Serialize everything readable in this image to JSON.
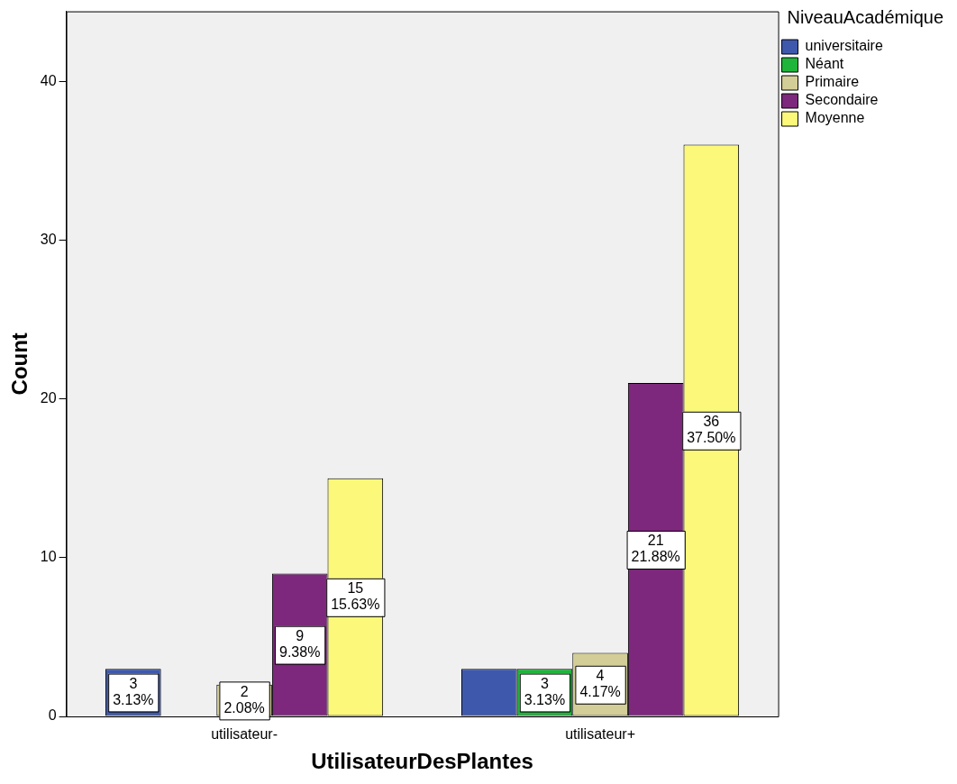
{
  "chart_data": {
    "type": "bar",
    "xlabel": "UtilisateurDesPlantes",
    "ylabel": "Count",
    "legend_title": "NiveauAcadémique",
    "categories": [
      "utilisateur-",
      "utilisateur+"
    ],
    "ylim": [
      0,
      44.4
    ],
    "yticks": [
      0,
      10,
      20,
      30,
      40
    ],
    "grid": false,
    "legend": "top right",
    "series": [
      {
        "name": "universitaire",
        "color": "#3e58ac",
        "values": [
          3,
          3
        ],
        "value_labels": [
          "3\n3.13%",
          null
        ]
      },
      {
        "name": "Néant",
        "color": "#1fb53b",
        "values": [
          0,
          3
        ],
        "value_labels": [
          null,
          "3\n3.13%"
        ]
      },
      {
        "name": "Primaire",
        "color": "#d3ce97",
        "values": [
          2,
          4
        ],
        "value_labels": [
          "2\n2.08%",
          "4\n4.17%"
        ]
      },
      {
        "name": "Secondaire",
        "color": "#7d287c",
        "values": [
          9,
          21
        ],
        "value_labels": [
          "9\n9.38%",
          "21\n21.88%"
        ]
      },
      {
        "name": "Moyenne",
        "color": "#fbf87a",
        "values": [
          15,
          36
        ],
        "value_labels": [
          "15\n15.63%",
          "36\n37.50%"
        ]
      }
    ]
  }
}
